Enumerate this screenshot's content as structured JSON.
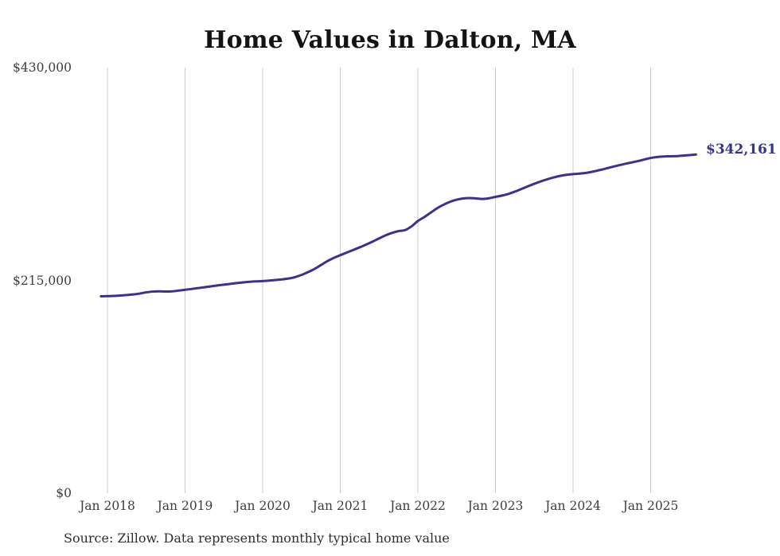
{
  "title": "Home Values in Dalton, MA",
  "source_note": "Source: Zillow. Data represents monthly typical home value",
  "end_label": "$342,161",
  "colors": {
    "line": "#3a3191",
    "grid": "#cccccc",
    "title_text": "#131313",
    "axis_text": "#3d3d3d",
    "end_label_text": "#39318e",
    "background": "#ffffff"
  },
  "chart_data": {
    "type": "line",
    "title": "Home Values in Dalton, MA",
    "xlabel": "",
    "ylabel": "",
    "ylim": [
      0,
      430000
    ],
    "grid": "vertical-only",
    "legend": "none",
    "x_tick_labels": [
      "Jan 2018",
      "Jan 2019",
      "Jan 2020",
      "Jan 2021",
      "Jan 2022",
      "Jan 2023",
      "Jan 2024",
      "Jan 2025"
    ],
    "y_ticks": [
      {
        "label": "$430,000",
        "value": 430000
      },
      {
        "label": "$215,000",
        "value": 215000
      },
      {
        "label": "$0",
        "value": 0
      }
    ],
    "last_point_label": "$342,161",
    "last_value": 342161,
    "series": [
      {
        "name": "Monthly typical home value",
        "x_start": "2017-12",
        "x_end": "2025-08",
        "interval": "monthly",
        "values": [
          198900,
          199100,
          199300,
          199700,
          200200,
          200800,
          201700,
          202900,
          203700,
          203900,
          203700,
          203900,
          204700,
          205500,
          206300,
          207200,
          208100,
          209000,
          209900,
          210700,
          211500,
          212300,
          213000,
          213600,
          214000,
          214300,
          214800,
          215400,
          216000,
          216900,
          218300,
          220500,
          223300,
          226500,
          230400,
          234400,
          237700,
          240500,
          243100,
          245700,
          248400,
          251200,
          254200,
          257400,
          260500,
          263000,
          264800,
          265800,
          269500,
          275000,
          279000,
          283500,
          288000,
          291500,
          294500,
          296500,
          297800,
          298200,
          297800,
          297300,
          298000,
          299400,
          300700,
          302400,
          304700,
          307300,
          310000,
          312600,
          315000,
          317100,
          319000,
          320600,
          321700,
          322400,
          322900,
          323600,
          324800,
          326300,
          327900,
          329600,
          331200,
          332700,
          334100,
          335500,
          337100,
          338700,
          339700,
          340200,
          340400,
          340600,
          341100,
          341600,
          342161
        ]
      }
    ]
  }
}
